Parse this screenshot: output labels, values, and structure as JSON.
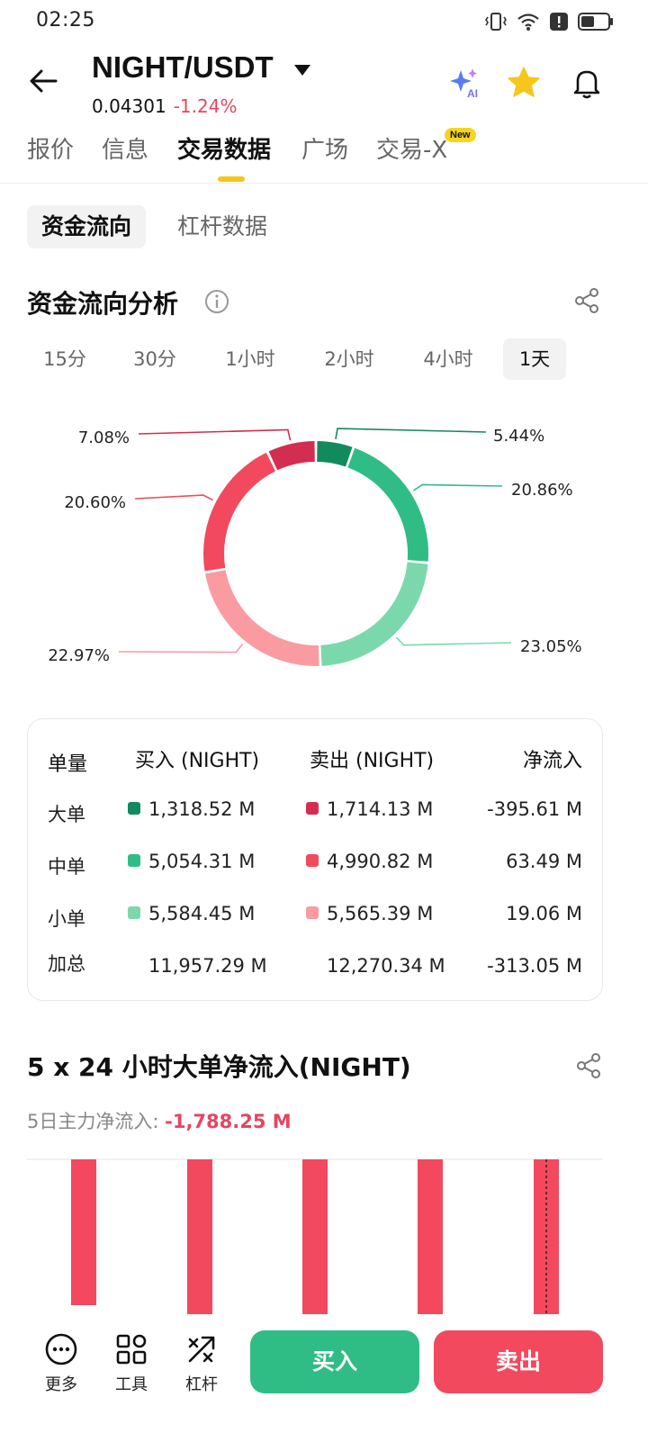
{
  "status": {
    "time": "02:25"
  },
  "header": {
    "pair": "NIGHT/USDT",
    "price": "0.04301",
    "change": "-1.24%"
  },
  "tabs": [
    {
      "label": "报价"
    },
    {
      "label": "信息"
    },
    {
      "label": "交易数据"
    },
    {
      "label": "广场"
    },
    {
      "label": "交易-X"
    }
  ],
  "tab_badge": "New",
  "subtabs": [
    {
      "label": "资金流向"
    },
    {
      "label": "杠杆数据"
    }
  ],
  "fund_flow": {
    "title": "资金流向分析",
    "periods": [
      "15分",
      "30分",
      "1小时",
      "2小时",
      "4小时",
      "1天"
    ],
    "active_period": "1天"
  },
  "chart_data": {
    "type": "pie",
    "slices": [
      {
        "label": "5.44%",
        "value": 5.44,
        "color": "#138a5e"
      },
      {
        "label": "20.86%",
        "value": 20.86,
        "color": "#2fbd85"
      },
      {
        "label": "23.05%",
        "value": 23.05,
        "color": "#7bd8ad"
      },
      {
        "label": "22.97%",
        "value": 22.97,
        "color": "#fa9ba2"
      },
      {
        "label": "20.60%",
        "value": 20.6,
        "color": "#f2495e"
      },
      {
        "label": "7.08%",
        "value": 7.08,
        "color": "#d22e4f"
      }
    ]
  },
  "flow_table": {
    "headers": [
      "单量",
      "买入 (NIGHT)",
      "卖出 (NIGHT)",
      "净流入"
    ],
    "rows": [
      {
        "label": "大单",
        "buy": "1,318.52 M",
        "sell": "1,714.13 M",
        "net": "-395.61 M",
        "buy_color": "#138a5e",
        "sell_color": "#d22e4f"
      },
      {
        "label": "中单",
        "buy": "5,054.31 M",
        "sell": "4,990.82 M",
        "net": "63.49 M",
        "buy_color": "#2fbd85",
        "sell_color": "#f2495e"
      },
      {
        "label": "小单",
        "buy": "5,584.45 M",
        "sell": "5,565.39 M",
        "net": "19.06 M",
        "buy_color": "#7bd8ad",
        "sell_color": "#fa9ba2"
      }
    ],
    "total": {
      "label": "加总",
      "buy": "11,957.29 M",
      "sell": "12,270.34 M",
      "net": "-313.05 M"
    }
  },
  "large_flow": {
    "title": "5 x 24 小时大单净流入(NIGHT)",
    "subtitle_label": "5日主力净流入:",
    "subtitle_value": "-1,788.25 M",
    "bar_color": "#f2495e"
  },
  "bottom": {
    "more": "更多",
    "tools": "工具",
    "leverage": "杠杆",
    "buy": "买入",
    "sell": "卖出"
  }
}
